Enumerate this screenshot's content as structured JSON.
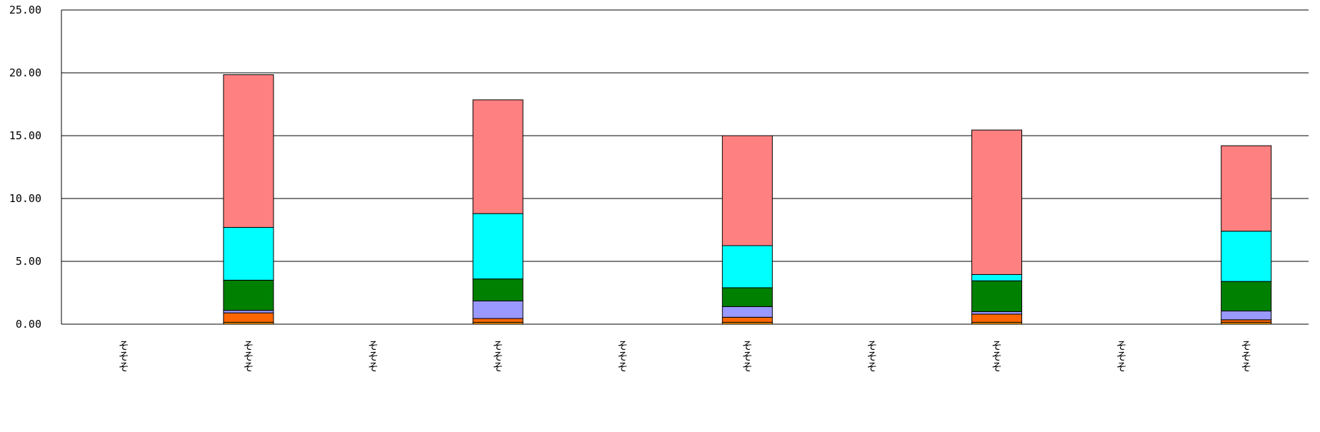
{
  "chart_data": {
    "type": "bar",
    "stacked": true,
    "title": "",
    "xlabel": "",
    "ylabel": "",
    "ylim": [
      0,
      25
    ],
    "yticks": [
      "0.00",
      "5.00",
      "10.00",
      "15.00",
      "20.00",
      "25.00"
    ],
    "grid": true,
    "legend": "none",
    "categories": [
      "そそそ",
      "そそそ",
      "そそそ",
      "そそそ",
      "そそそ",
      "そそそ",
      "そそそ",
      "そそそ",
      "そそそ",
      "そそそ"
    ],
    "series": [
      {
        "color": "#FF9900",
        "values": [
          0,
          0.15,
          0,
          0.15,
          0,
          0.15,
          0,
          0.15,
          0,
          0.15
        ]
      },
      {
        "color": "#FF6600",
        "values": [
          0,
          0.75,
          0,
          0.3,
          0,
          0.4,
          0,
          0.65,
          0,
          0.2
        ]
      },
      {
        "color": "#9999FF",
        "values": [
          0,
          0.2,
          0,
          1.4,
          0,
          0.85,
          0,
          0.2,
          0,
          0.7
        ]
      },
      {
        "color": "#008000",
        "values": [
          0,
          2.4,
          0,
          1.75,
          0,
          1.5,
          0,
          2.45,
          0,
          2.35
        ]
      },
      {
        "color": "#00FFFF",
        "values": [
          0,
          4.2,
          0,
          5.2,
          0,
          3.35,
          0,
          0.5,
          0,
          4.0
        ]
      },
      {
        "color": "#FF8080",
        "values": [
          0,
          12.15,
          0,
          9.05,
          0,
          8.75,
          0,
          11.5,
          0,
          6.8
        ]
      }
    ]
  }
}
